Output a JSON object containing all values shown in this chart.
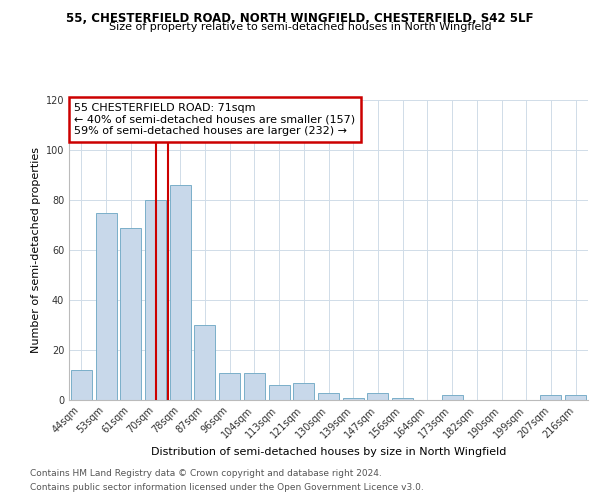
{
  "title1": "55, CHESTERFIELD ROAD, NORTH WINGFIELD, CHESTERFIELD, S42 5LF",
  "title2": "Size of property relative to semi-detached houses in North Wingfield",
  "xlabel": "Distribution of semi-detached houses by size in North Wingfield",
  "ylabel": "Number of semi-detached properties",
  "categories": [
    "44sqm",
    "53sqm",
    "61sqm",
    "70sqm",
    "78sqm",
    "87sqm",
    "96sqm",
    "104sqm",
    "113sqm",
    "121sqm",
    "130sqm",
    "139sqm",
    "147sqm",
    "156sqm",
    "164sqm",
    "173sqm",
    "182sqm",
    "190sqm",
    "199sqm",
    "207sqm",
    "216sqm"
  ],
  "values": [
    12,
    75,
    69,
    80,
    86,
    30,
    11,
    11,
    6,
    7,
    3,
    1,
    3,
    1,
    0,
    2,
    0,
    0,
    0,
    2,
    2
  ],
  "bar_color": "#c8d8ea",
  "bar_edge_color": "#7aafc9",
  "vline_x_index": 3,
  "annotation_line1": "55 CHESTERFIELD ROAD: 71sqm",
  "annotation_line2": "← 40% of semi-detached houses are smaller (157)",
  "annotation_line3": "59% of semi-detached houses are larger (232) →",
  "annotation_box_facecolor": "#ffffff",
  "annotation_box_edgecolor": "#cc0000",
  "vline_color": "#cc0000",
  "ylim": [
    0,
    120
  ],
  "yticks": [
    0,
    20,
    40,
    60,
    80,
    100,
    120
  ],
  "footer1": "Contains HM Land Registry data © Crown copyright and database right 2024.",
  "footer2": "Contains public sector information licensed under the Open Government Licence v3.0.",
  "background_color": "#ffffff",
  "plot_background": "#ffffff",
  "grid_color": "#d0dce8",
  "title1_fontsize": 8.5,
  "title2_fontsize": 8,
  "tick_fontsize": 7,
  "xlabel_fontsize": 8,
  "ylabel_fontsize": 8,
  "annotation_fontsize": 8,
  "footer_fontsize": 6.5
}
